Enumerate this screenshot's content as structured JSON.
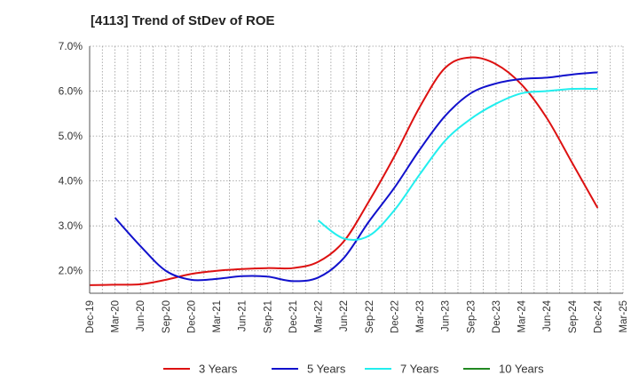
{
  "chart_data": {
    "type": "line",
    "title": "[4113]  Trend of StDev of ROE",
    "xlabel": "",
    "ylabel": "",
    "x_ticks": [
      "Dec-19",
      "Mar-20",
      "Jun-20",
      "Sep-20",
      "Dec-20",
      "Mar-21",
      "Jun-21",
      "Sep-21",
      "Dec-21",
      "Mar-22",
      "Jun-22",
      "Sep-22",
      "Dec-22",
      "Mar-23",
      "Jun-23",
      "Sep-23",
      "Dec-23",
      "Mar-24",
      "Jun-24",
      "Sep-24",
      "Dec-24",
      "Mar-25"
    ],
    "y_ticks": [
      "2.0%",
      "3.0%",
      "4.0%",
      "5.0%",
      "6.0%",
      "7.0%"
    ],
    "ylim": [
      1.5,
      7.0
    ],
    "grid": true,
    "legend_position": "bottom",
    "series": [
      {
        "name": "3 Years",
        "color": "#dd1111",
        "points": [
          [
            "Dec-19",
            1.68
          ],
          [
            "Mar-20",
            1.69
          ],
          [
            "Jun-20",
            1.7
          ],
          [
            "Sep-20",
            1.8
          ],
          [
            "Dec-20",
            1.93
          ],
          [
            "Mar-21",
            2.0
          ],
          [
            "Jun-21",
            2.04
          ],
          [
            "Sep-21",
            2.06
          ],
          [
            "Dec-21",
            2.06
          ],
          [
            "Mar-22",
            2.2
          ],
          [
            "Jun-22",
            2.65
          ],
          [
            "Sep-22",
            3.55
          ],
          [
            "Dec-22",
            4.55
          ],
          [
            "Mar-23",
            5.65
          ],
          [
            "Jun-23",
            6.52
          ],
          [
            "Sep-23",
            6.75
          ],
          [
            "Dec-23",
            6.6
          ],
          [
            "Mar-24",
            6.15
          ],
          [
            "Jun-24",
            5.4
          ],
          [
            "Sep-24",
            4.4
          ],
          [
            "Dec-24",
            3.4
          ]
        ]
      },
      {
        "name": "5 Years",
        "color": "#1111cc",
        "points": [
          [
            "Mar-20",
            3.18
          ],
          [
            "Jun-20",
            2.55
          ],
          [
            "Sep-20",
            2.0
          ],
          [
            "Dec-20",
            1.8
          ],
          [
            "Mar-21",
            1.82
          ],
          [
            "Jun-21",
            1.88
          ],
          [
            "Sep-21",
            1.87
          ],
          [
            "Dec-21",
            1.77
          ],
          [
            "Mar-22",
            1.85
          ],
          [
            "Jun-22",
            2.28
          ],
          [
            "Sep-22",
            3.1
          ],
          [
            "Dec-22",
            3.85
          ],
          [
            "Mar-23",
            4.7
          ],
          [
            "Jun-23",
            5.45
          ],
          [
            "Sep-23",
            5.95
          ],
          [
            "Dec-23",
            6.17
          ],
          [
            "Mar-24",
            6.27
          ],
          [
            "Jun-24",
            6.3
          ],
          [
            "Sep-24",
            6.37
          ],
          [
            "Dec-24",
            6.42
          ]
        ]
      },
      {
        "name": "7 Years",
        "color": "#22eeee",
        "points": [
          [
            "Mar-22",
            3.12
          ],
          [
            "Jun-22",
            2.72
          ],
          [
            "Sep-22",
            2.78
          ],
          [
            "Dec-22",
            3.35
          ],
          [
            "Mar-23",
            4.15
          ],
          [
            "Jun-23",
            4.9
          ],
          [
            "Sep-23",
            5.38
          ],
          [
            "Dec-23",
            5.72
          ],
          [
            "Mar-24",
            5.95
          ],
          [
            "Jun-24",
            6.0
          ],
          [
            "Sep-24",
            6.05
          ],
          [
            "Dec-24",
            6.05
          ]
        ]
      },
      {
        "name": "10 Years",
        "color": "#228822",
        "points": []
      }
    ]
  }
}
